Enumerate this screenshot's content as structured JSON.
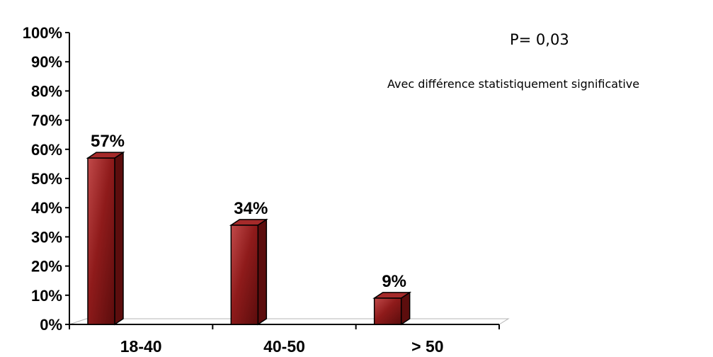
{
  "chart_data": {
    "type": "bar",
    "categories": [
      "18-40",
      "40-50",
      "> 50"
    ],
    "values": [
      57,
      34,
      9
    ],
    "data_labels": [
      "57%",
      "34%",
      "9%"
    ],
    "ylim": [
      0,
      100
    ],
    "yticks": [
      "0%",
      "10%",
      "20%",
      "30%",
      "40%",
      "50%",
      "60%",
      "70%",
      "80%",
      "90%",
      "100%"
    ],
    "grid": false,
    "legend": "none",
    "title": "",
    "xlabel": "",
    "ylabel": "",
    "bar_color": "#8b1a1a",
    "annotations": [
      "P= 0,03",
      "Avec différence statistiquement significative"
    ]
  }
}
